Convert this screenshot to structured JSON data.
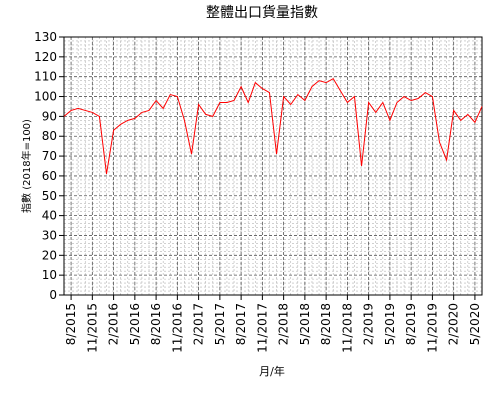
{
  "chart_data": {
    "type": "line",
    "title": "整體出口貨量指數",
    "xlabel": "月/年",
    "ylabel": "指數 (2018年=100)",
    "ylim": [
      0,
      130
    ],
    "yticks": [
      0,
      10,
      20,
      30,
      40,
      50,
      60,
      70,
      80,
      90,
      100,
      110,
      120,
      130
    ],
    "xtick_labels": [
      "8/2015",
      "11/2015",
      "2/2016",
      "5/2016",
      "8/2016",
      "11/2016",
      "2/2017",
      "5/2017",
      "8/2017",
      "11/2017",
      "2/2018",
      "5/2018",
      "8/2018",
      "11/2018",
      "2/2019",
      "5/2019",
      "8/2019",
      "11/2019",
      "2/2020",
      "5/2020"
    ],
    "grid": true,
    "series": [
      {
        "color": "#ff0000",
        "x": [
          "7/2015",
          "8/2015",
          "9/2015",
          "10/2015",
          "11/2015",
          "12/2015",
          "1/2016",
          "2/2016",
          "3/2016",
          "4/2016",
          "5/2016",
          "6/2016",
          "7/2016",
          "8/2016",
          "9/2016",
          "10/2016",
          "11/2016",
          "12/2016",
          "1/2017",
          "2/2017",
          "3/2017",
          "4/2017",
          "5/2017",
          "6/2017",
          "7/2017",
          "8/2017",
          "9/2017",
          "10/2017",
          "11/2017",
          "12/2017",
          "1/2018",
          "2/2018",
          "3/2018",
          "4/2018",
          "5/2018",
          "6/2018",
          "7/2018",
          "8/2018",
          "9/2018",
          "10/2018",
          "11/2018",
          "12/2018",
          "1/2019",
          "2/2019",
          "3/2019",
          "4/2019",
          "5/2019",
          "6/2019",
          "7/2019",
          "8/2019",
          "9/2019",
          "10/2019",
          "11/2019",
          "12/2019",
          "1/2020",
          "2/2020",
          "3/2020",
          "4/2020",
          "5/2020",
          "6/2020"
        ],
        "values": [
          90,
          93,
          94,
          93,
          92,
          90,
          61,
          83,
          86,
          88,
          89,
          92,
          93,
          98,
          94,
          101,
          100,
          88,
          71,
          96,
          91,
          90,
          97,
          97,
          98,
          105,
          97,
          107,
          104,
          102,
          71,
          100,
          96,
          101,
          98,
          105,
          108,
          107,
          109,
          103,
          97,
          100,
          65,
          97,
          92,
          97,
          88,
          97,
          100,
          98,
          99,
          102,
          100,
          77,
          68,
          93,
          88,
          91,
          87,
          95
        ]
      }
    ]
  }
}
